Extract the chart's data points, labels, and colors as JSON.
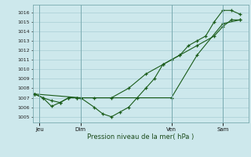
{
  "background_color": "#cde8ec",
  "grid_color": "#a8cdd4",
  "line_color": "#1a5c1a",
  "title": "Pression niveau de la mer( hPa )",
  "ylim": [
    1004.4,
    1016.8
  ],
  "yticks": [
    1005,
    1006,
    1007,
    1008,
    1009,
    1010,
    1011,
    1012,
    1013,
    1014,
    1015,
    1016
  ],
  "day_positions": [
    0.3,
    2.7,
    8.0,
    11.0
  ],
  "day_labels": [
    "Jeu",
    "Dim",
    "Ven",
    "Sam"
  ],
  "line1_x": [
    0.0,
    0.5,
    1.0,
    1.5,
    2.0,
    2.5,
    2.7,
    3.5,
    4.0,
    4.5,
    5.0,
    5.5,
    6.0,
    6.5,
    7.0,
    7.5,
    8.0,
    8.5,
    9.0,
    9.5,
    10.0,
    10.5,
    11.0,
    11.5,
    12.0
  ],
  "line1_y": [
    1007.4,
    1007.0,
    1006.1,
    1006.5,
    1007.0,
    1007.0,
    1007.0,
    1006.0,
    1005.3,
    1005.0,
    1005.5,
    1006.0,
    1007.0,
    1008.0,
    1009.0,
    1010.5,
    1011.0,
    1011.5,
    1012.5,
    1013.0,
    1013.5,
    1015.0,
    1016.2,
    1016.2,
    1015.8
  ],
  "line2_x": [
    0.0,
    0.5,
    1.0,
    1.5,
    2.0,
    2.5,
    3.5,
    4.5,
    5.5,
    6.5,
    7.5,
    8.5,
    9.5,
    10.5,
    11.0,
    11.5,
    12.0
  ],
  "line2_y": [
    1007.4,
    1007.0,
    1006.7,
    1006.5,
    1007.0,
    1007.0,
    1007.0,
    1007.0,
    1008.0,
    1009.5,
    1010.5,
    1011.5,
    1012.5,
    1013.5,
    1014.5,
    1015.2,
    1015.2
  ],
  "line3_x": [
    0.0,
    2.7,
    8.0,
    9.5,
    11.0,
    12.0
  ],
  "line3_y": [
    1007.4,
    1007.0,
    1007.0,
    1011.5,
    1014.8,
    1015.2
  ],
  "xlim": [
    -0.1,
    12.5
  ],
  "figsize": [
    3.2,
    2.0
  ],
  "dpi": 100
}
